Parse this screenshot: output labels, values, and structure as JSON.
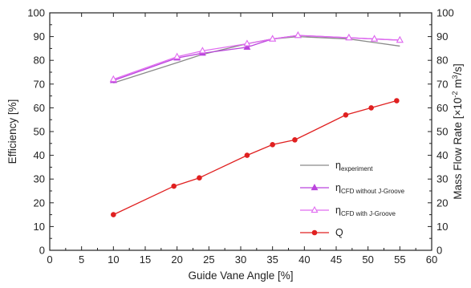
{
  "chart_data": {
    "type": "line",
    "xlabel": "Guide Vane Angle  [%]",
    "ylabel_left": "Efficiency  [%]",
    "ylabel_right": {
      "prefix": "Mass Flow Rate  [×10",
      "exp1": "-2",
      "mid": " m",
      "exp2": "3",
      "suffix": "/s]"
    },
    "xlim": [
      0,
      60
    ],
    "ylim_left": [
      0,
      100
    ],
    "ylim_right": [
      0,
      100
    ],
    "x_ticks": [
      "0",
      "5",
      "10",
      "15",
      "20",
      "25",
      "30",
      "35",
      "40",
      "45",
      "50",
      "55",
      "60"
    ],
    "y_ticks_left": [
      "0",
      "10",
      "20",
      "30",
      "40",
      "50",
      "60",
      "70",
      "80",
      "90",
      "100"
    ],
    "y_ticks_right": [
      "0",
      "10",
      "20",
      "30",
      "40",
      "50",
      "60",
      "70",
      "80",
      "90",
      "100"
    ],
    "legend_position": "center-right",
    "series": [
      {
        "legend_main": "η",
        "legend_sub": "experiment",
        "color": "#8a8a8a",
        "marker": "none",
        "x": [
          10,
          20,
          24,
          31,
          35,
          39,
          47,
          51,
          55
        ],
        "y": [
          70.5,
          79,
          82.5,
          87,
          89,
          90,
          89,
          87.5,
          86
        ]
      },
      {
        "legend_main": "η",
        "legend_sub": "CFD without J-Groove",
        "color": "#bb44dd",
        "marker": "triangle-filled",
        "x": [
          10,
          20,
          24,
          31,
          35,
          39,
          47,
          51,
          55
        ],
        "y": [
          71.5,
          81,
          83,
          85.5,
          89,
          90.5,
          89.5,
          89,
          88.5
        ]
      },
      {
        "legend_main": "η",
        "legend_sub": "CFD with  J-Groove",
        "color": "#e06cf0",
        "marker": "triangle-open",
        "x": [
          10,
          20,
          24,
          31,
          35,
          39,
          47,
          51,
          55
        ],
        "y": [
          72,
          81.5,
          84,
          87,
          89,
          90.5,
          89.5,
          89,
          88.5
        ]
      },
      {
        "legend_main": "Q",
        "legend_sub": "",
        "color": "#e02020",
        "marker": "circle-filled",
        "x": [
          10,
          19.5,
          23.5,
          31,
          35,
          38.5,
          46.5,
          50.5,
          54.5
        ],
        "y": [
          15,
          27,
          30.5,
          40,
          44.5,
          46.5,
          57,
          60,
          63
        ]
      }
    ]
  }
}
